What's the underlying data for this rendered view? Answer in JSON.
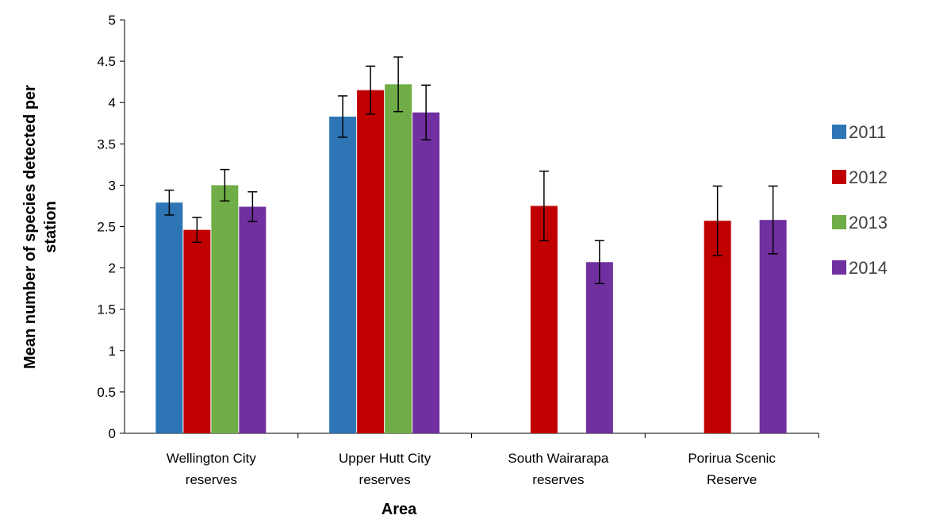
{
  "chart_data": {
    "type": "bar",
    "xlabel": "Area",
    "ylabel": "Mean number of species detected per station",
    "ylabel_lines": [
      "Mean number of species detected per",
      "station"
    ],
    "ylim": [
      0,
      5
    ],
    "yticks": [
      0,
      0.5,
      1,
      1.5,
      2,
      2.5,
      3,
      3.5,
      4,
      4.5,
      5
    ],
    "ytick_labels": [
      "0",
      "0.5",
      "1",
      "1.5",
      "2",
      "2.5",
      "3",
      "3.5",
      "4",
      "4.5",
      "5"
    ],
    "grid": false,
    "legend_position": "right",
    "categories": [
      [
        "Wellington City",
        "reserves"
      ],
      [
        "Upper Hutt City",
        "reserves"
      ],
      [
        "South Wairarapa",
        "reserves"
      ],
      [
        "Porirua Scenic",
        "Reserve"
      ]
    ],
    "series": [
      {
        "name": "2011",
        "color": "#2E75B6",
        "values": [
          2.79,
          3.83,
          null,
          null
        ],
        "errors": [
          0.15,
          0.25,
          null,
          null
        ]
      },
      {
        "name": "2012",
        "color": "#C00000",
        "values": [
          2.46,
          4.15,
          2.75,
          2.57
        ],
        "errors": [
          0.15,
          0.29,
          0.42,
          0.42
        ]
      },
      {
        "name": "2013",
        "color": "#70AD47",
        "values": [
          3.0,
          4.22,
          null,
          null
        ],
        "errors": [
          0.19,
          0.33,
          null,
          null
        ]
      },
      {
        "name": "2014",
        "color": "#7030A0",
        "values": [
          2.74,
          3.88,
          2.07,
          2.58
        ],
        "errors": [
          0.18,
          0.33,
          0.26,
          0.41
        ]
      }
    ]
  }
}
